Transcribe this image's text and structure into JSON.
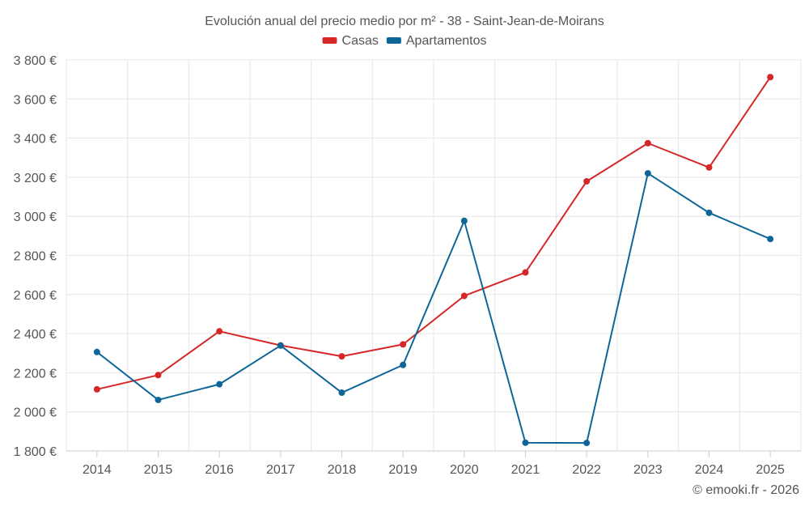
{
  "chart_data": {
    "type": "line",
    "title": "Evolución anual del precio medio por m² - 38 - Saint-Jean-de-Moirans",
    "categories": [
      "2014",
      "2015",
      "2016",
      "2017",
      "2018",
      "2019",
      "2020",
      "2021",
      "2022",
      "2023",
      "2024",
      "2025"
    ],
    "series": [
      {
        "name": "Casas",
        "color": "#d62728",
        "values": [
          2115,
          2188,
          2412,
          2340,
          2284,
          2345,
          2593,
          2713,
          3179,
          3374,
          3250,
          3712
        ]
      },
      {
        "name": "Apartamentos",
        "color": "#0e6698",
        "values": [
          2306,
          2061,
          2141,
          2339,
          2098,
          2240,
          2977,
          1842,
          1841,
          3220,
          3018,
          2884
        ]
      }
    ],
    "ylim": [
      1800,
      3800
    ],
    "yticks": [
      1800,
      2000,
      2200,
      2400,
      2600,
      2800,
      3000,
      3200,
      3400,
      3600,
      3800
    ],
    "ytick_labels": [
      "1 800 €",
      "2 000 €",
      "2 200 €",
      "2 400 €",
      "2 600 €",
      "2 800 €",
      "3 000 €",
      "3 200 €",
      "3 400 €",
      "3 600 €",
      "3 800 €"
    ],
    "xlabel": "",
    "ylabel": "",
    "grid": true,
    "legend_position": "top-center"
  },
  "credit": "© emooki.fr - 2026"
}
